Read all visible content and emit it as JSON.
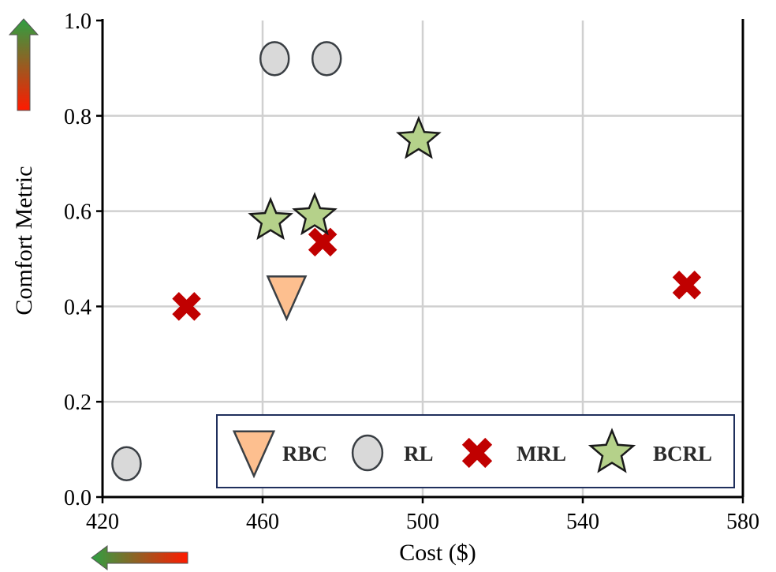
{
  "chart_data": {
    "type": "scatter",
    "title": "",
    "xlabel": "Cost ($)",
    "ylabel": "Comfort Metric",
    "xlim": [
      420,
      580
    ],
    "ylim": [
      0.0,
      1.0
    ],
    "xticks": [
      420,
      460,
      500,
      540,
      580
    ],
    "xtick_labels": [
      "420",
      "460",
      "500",
      "540",
      "580"
    ],
    "yticks": [
      0.0,
      0.2,
      0.4,
      0.6,
      0.8,
      1.0
    ],
    "ytick_labels": [
      "0.0",
      "0.2",
      "0.4",
      "0.6",
      "0.8",
      "1.0"
    ],
    "grid": true,
    "legend_position": "bottom-right",
    "series": [
      {
        "name": "RBC",
        "marker": "triangle-down",
        "color": "#fdbf8f",
        "points": [
          {
            "x": 466,
            "y": 0.42
          }
        ]
      },
      {
        "name": "RL",
        "marker": "circle",
        "color": "#d9d9d9",
        "points": [
          {
            "x": 426,
            "y": 0.07
          },
          {
            "x": 463,
            "y": 0.92
          },
          {
            "x": 476,
            "y": 0.92
          }
        ]
      },
      {
        "name": "MRL",
        "marker": "x",
        "color": "#c00000",
        "points": [
          {
            "x": 441,
            "y": 0.4
          },
          {
            "x": 475,
            "y": 0.535
          },
          {
            "x": 566,
            "y": 0.445
          }
        ]
      },
      {
        "name": "BCRL",
        "marker": "star",
        "color": "#b5d18a",
        "points": [
          {
            "x": 462,
            "y": 0.58
          },
          {
            "x": 473,
            "y": 0.59
          },
          {
            "x": 499,
            "y": 0.75
          }
        ]
      }
    ],
    "annotations": {
      "y_arrow": {
        "direction": "up",
        "gradient": [
          "#ff1a00",
          "#2ea043"
        ]
      },
      "x_arrow": {
        "direction": "left",
        "gradient": [
          "#2ea043",
          "#ff1a00"
        ]
      }
    }
  }
}
